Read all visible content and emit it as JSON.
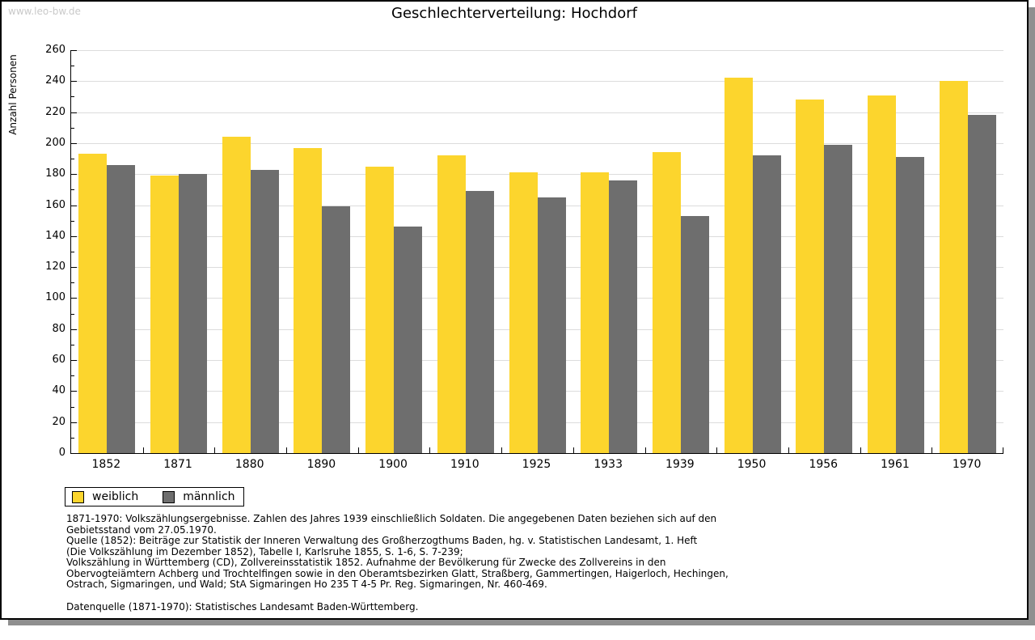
{
  "watermark": "www.leo-bw.de",
  "title": "Geschlechterverteilung: Hochdorf",
  "y_axis_label": "Anzahl Personen",
  "colors": {
    "female_bar": "#fcd52d",
    "male_bar": "#6e6e6e",
    "gridline": "#dcdcdc",
    "watermark": "#c9c9c9"
  },
  "legend": {
    "items": [
      {
        "label": "weiblich",
        "color": "#fcd52d"
      },
      {
        "label": "männlich",
        "color": "#6e6e6e"
      }
    ]
  },
  "footnotes": [
    "1871-1970: Volkszählungsergebnisse. Zahlen des Jahres 1939 einschließlich Soldaten. Die angegebenen Daten beziehen sich auf den",
    "Gebietsstand vom 27.05.1970.",
    "Quelle (1852): Beiträge zur Statistik der Inneren Verwaltung des Großherzogthums Baden, hg. v. Statistischen Landesamt, 1. Heft",
    "(Die Volkszählung im Dezember 1852), Tabelle I, Karlsruhe 1855, S. 1-6, S. 7-239;",
    "Volkszählung in Württemberg (CD), Zollvereinsstatistik 1852. Aufnahme der Bevölkerung für Zwecke des Zollvereins in den",
    "Obervogteiämtern Achberg und Trochtelfingen sowie in den Oberamtsbezirken Glatt, Straßberg, Gammertingen, Haigerloch, Hechingen,",
    "Ostrach, Sigmaringen, und Wald; StA Sigmaringen Ho 235 T 4-5 Pr. Reg. Sigmaringen, Nr. 460-469."
  ],
  "datasource": "Datenquelle (1871-1970): Statistisches Landesamt Baden-Württemberg.",
  "chart_data": {
    "type": "bar",
    "title": "Geschlechterverteilung: Hochdorf",
    "categories": [
      "1852",
      "1871",
      "1880",
      "1890",
      "1900",
      "1910",
      "1925",
      "1933",
      "1939",
      "1950",
      "1956",
      "1961",
      "1970"
    ],
    "series": [
      {
        "name": "weiblich",
        "color": "#fcd52d",
        "values": [
          193,
          179,
          204,
          197,
          185,
          192,
          181,
          181,
          194,
          242,
          228,
          231,
          240
        ]
      },
      {
        "name": "männlich",
        "color": "#6e6e6e",
        "values": [
          186,
          180,
          183,
          159,
          146,
          169,
          165,
          176,
          153,
          192,
          199,
          191,
          218
        ]
      }
    ],
    "xlabel": "",
    "ylabel": "Anzahl Personen",
    "ylim": [
      0,
      260
    ],
    "ytick_step": 20,
    "ytick_minor_step": 10,
    "grid": true,
    "legend_position": "bottom-left"
  }
}
